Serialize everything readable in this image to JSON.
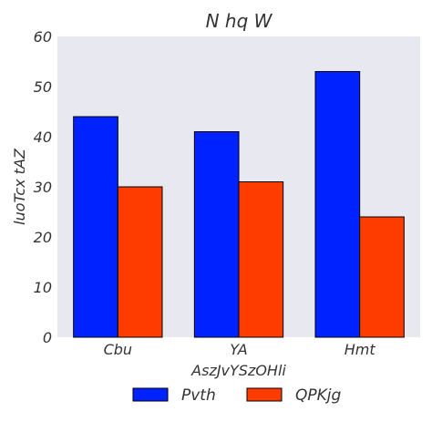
{
  "chart_data": {
    "type": "bar",
    "title": "N hq W",
    "xlabel": "AszJvYSzOHli",
    "ylabel": "luoTcx tAZ",
    "categories": [
      "Cbu",
      "YA",
      "Hmt"
    ],
    "series": [
      {
        "name": "Pvth",
        "values": [
          44,
          41,
          53
        ],
        "color": "#0022ff"
      },
      {
        "name": "QPKjg",
        "values": [
          30,
          31,
          24
        ],
        "color": "#ff3c00"
      }
    ],
    "ylim": [
      0,
      60
    ],
    "yticks": [
      0,
      10,
      20,
      30,
      40,
      50,
      60
    ],
    "grid": false,
    "background": "#e8e8f0",
    "legend_position": "bottom-center"
  }
}
